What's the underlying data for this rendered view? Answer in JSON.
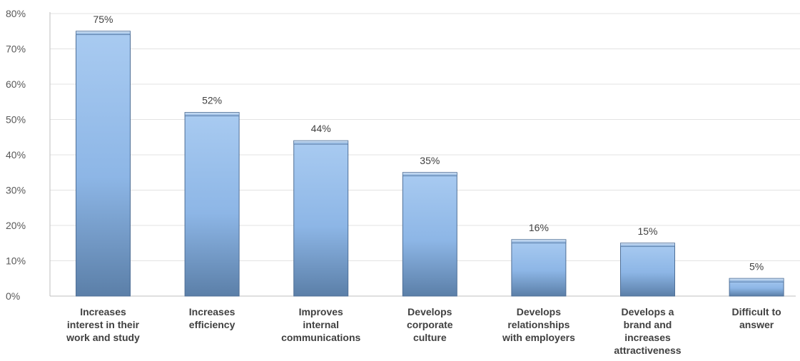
{
  "chart_data": {
    "type": "bar",
    "categories": [
      "Increases interest in their work and study",
      "Increases efficiency",
      "Improves internal communications",
      "Develops corporate culture",
      "Develops relationships with employers",
      "Develops a brand and increases attractiveness",
      "Difficult to answer"
    ],
    "category_lines": [
      [
        "Increases",
        "interest in their",
        "work and study"
      ],
      [
        "Increases",
        "efficiency"
      ],
      [
        "Improves",
        "internal",
        "communications"
      ],
      [
        "Develops",
        "corporate",
        "culture"
      ],
      [
        "Develops",
        "relationships",
        "with employers"
      ],
      [
        "Develops a",
        "brand and",
        "increases",
        "attractiveness"
      ],
      [
        "Difficult to",
        "answer"
      ]
    ],
    "values": [
      75,
      52,
      44,
      35,
      16,
      15,
      5
    ],
    "data_labels": [
      "75%",
      "52%",
      "44%",
      "35%",
      "16%",
      "15%",
      "5%"
    ],
    "yticks": [
      0,
      10,
      20,
      30,
      40,
      50,
      60,
      70,
      80
    ],
    "ytick_labels": [
      "0%",
      "10%",
      "20%",
      "30%",
      "40%",
      "50%",
      "60%",
      "70%",
      "80%"
    ],
    "ylim": [
      0,
      80
    ],
    "grid": true,
    "legend": "none",
    "title": "",
    "xlabel": "",
    "ylabel": "",
    "colors": {
      "bar_top": "#a9cbf1",
      "bar_mid": "#8db6e6",
      "bar_bottom": "#5b7fa8",
      "bar_edge": "#4f6f96",
      "cap_light": "#dcebfb",
      "cap_dark": "#7aa3d3"
    }
  }
}
